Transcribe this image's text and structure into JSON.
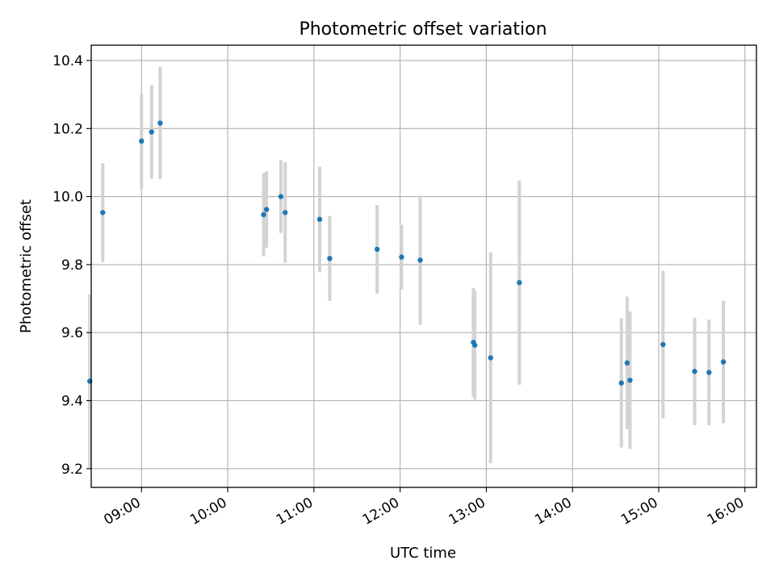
{
  "chart_data": {
    "type": "scatter",
    "title": "Photometric offset variation",
    "xlabel": "UTC time",
    "ylabel": "Photometric offset",
    "x_axis_kind": "time-of-day",
    "xlim": [
      "08:25",
      "16:08"
    ],
    "ylim": [
      9.145,
      10.445
    ],
    "x_ticks": [
      "09:00",
      "10:00",
      "11:00",
      "12:00",
      "13:00",
      "14:00",
      "15:00",
      "16:00"
    ],
    "y_ticks": [
      "9.2",
      "9.4",
      "9.6",
      "9.8",
      "10.0",
      "10.2",
      "10.4"
    ],
    "grid": true,
    "legend": "none",
    "colors": {
      "marker": "#1f77b4",
      "error_bar": "#d3d3d3",
      "grid": "#b0b0b0"
    },
    "points": [
      {
        "t": "08:24",
        "y": 9.457,
        "err": 0.255
      },
      {
        "t": "08:33",
        "y": 9.953,
        "err": 0.145
      },
      {
        "t": "09:00",
        "y": 10.163,
        "err": 0.14
      },
      {
        "t": "09:07",
        "y": 10.19,
        "err": 0.138
      },
      {
        "t": "09:13",
        "y": 10.216,
        "err": 0.165
      },
      {
        "t": "10:25",
        "y": 9.947,
        "err": 0.122
      },
      {
        "t": "10:27",
        "y": 9.962,
        "err": 0.112
      },
      {
        "t": "10:37",
        "y": 10.0,
        "err": 0.107
      },
      {
        "t": "10:40",
        "y": 9.953,
        "err": 0.148
      },
      {
        "t": "11:04",
        "y": 9.933,
        "err": 0.155
      },
      {
        "t": "11:11",
        "y": 9.818,
        "err": 0.125
      },
      {
        "t": "11:44",
        "y": 9.845,
        "err": 0.13
      },
      {
        "t": "12:01",
        "y": 9.822,
        "err": 0.095
      },
      {
        "t": "12:14",
        "y": 9.813,
        "err": 0.19
      },
      {
        "t": "12:51",
        "y": 9.571,
        "err": 0.16
      },
      {
        "t": "12:52",
        "y": 9.563,
        "err": 0.16
      },
      {
        "t": "13:03",
        "y": 9.526,
        "err": 0.31
      },
      {
        "t": "13:23",
        "y": 9.747,
        "err": 0.3
      },
      {
        "t": "14:34",
        "y": 9.452,
        "err": 0.19
      },
      {
        "t": "14:38",
        "y": 9.511,
        "err": 0.195
      },
      {
        "t": "14:40",
        "y": 9.46,
        "err": 0.202
      },
      {
        "t": "15:03",
        "y": 9.565,
        "err": 0.217
      },
      {
        "t": "15:25",
        "y": 9.486,
        "err": 0.158
      },
      {
        "t": "15:35",
        "y": 9.483,
        "err": 0.155
      },
      {
        "t": "15:45",
        "y": 9.514,
        "err": 0.18
      }
    ]
  }
}
